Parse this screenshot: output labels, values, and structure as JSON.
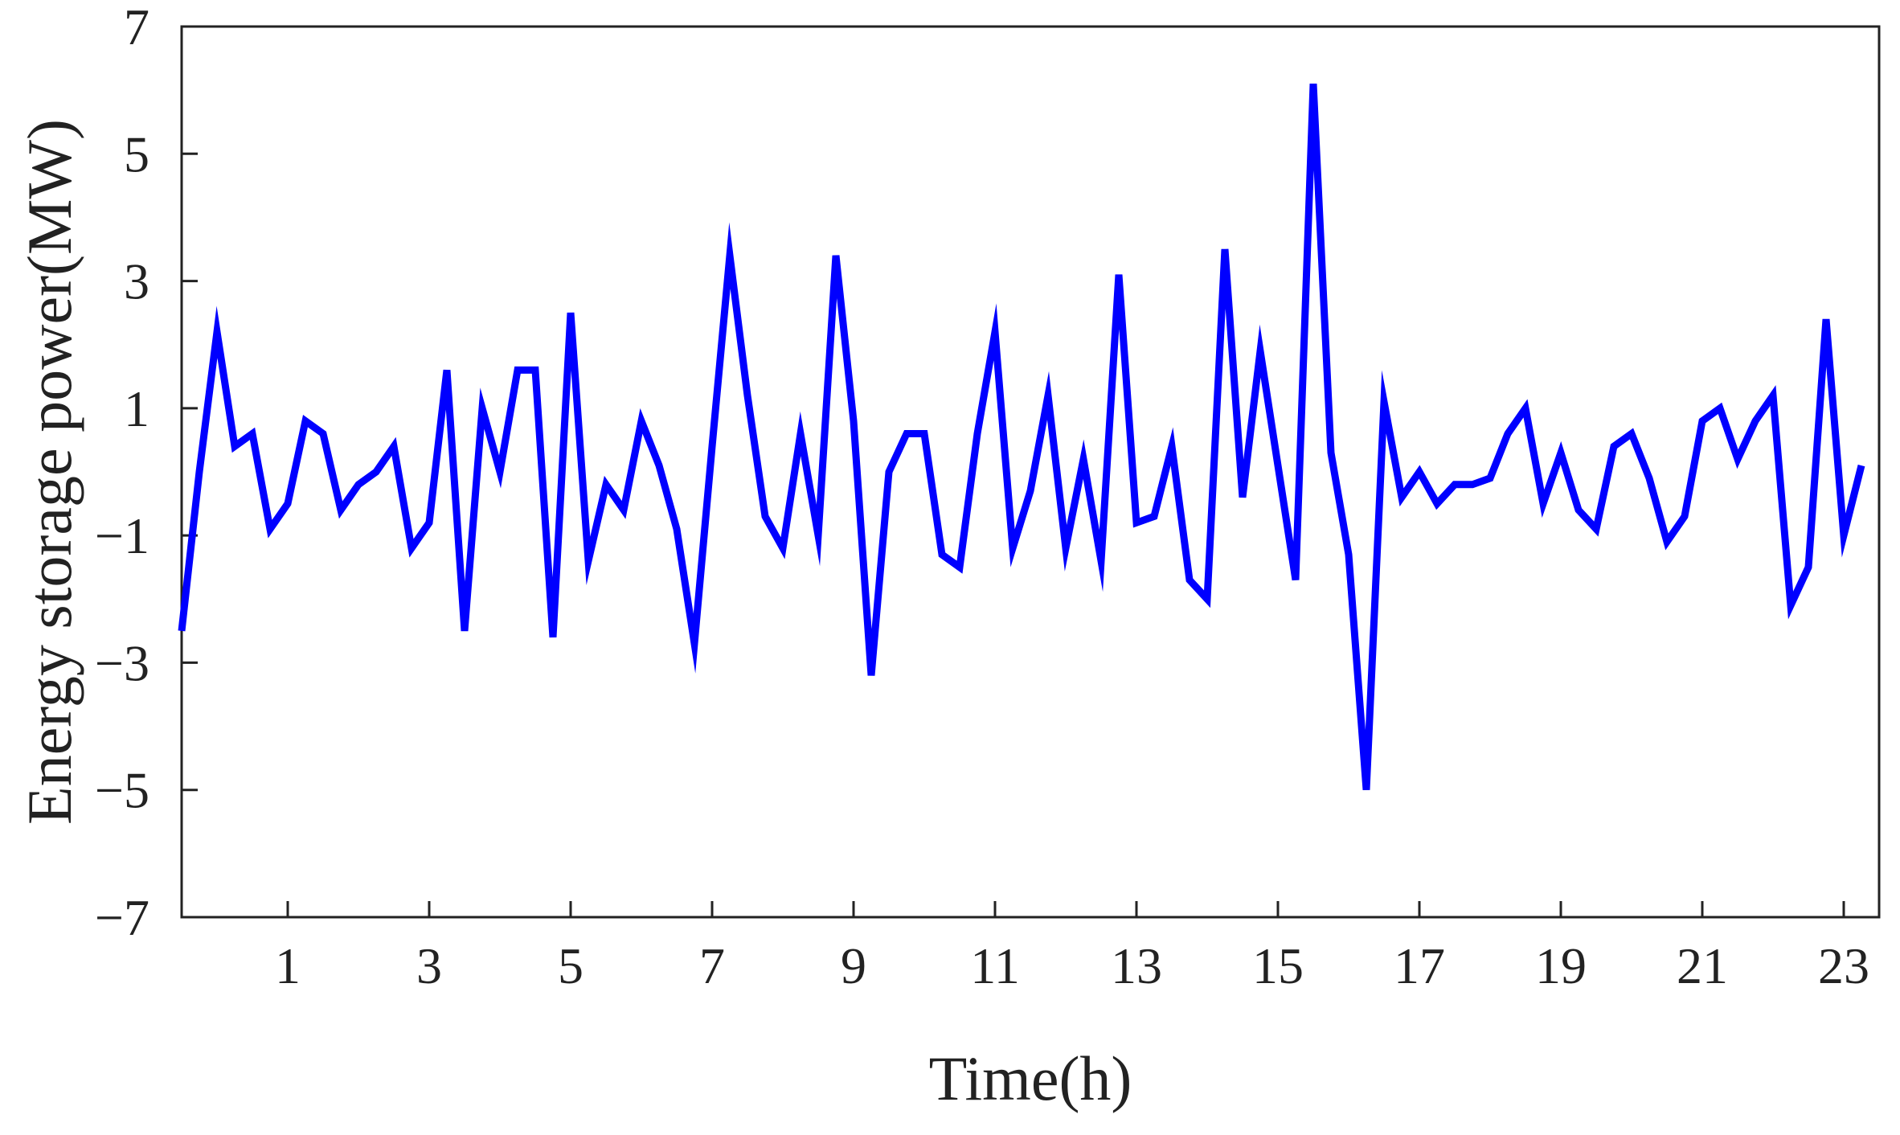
{
  "chart_data": {
    "type": "line",
    "title": "",
    "xlabel": "Time(h)",
    "ylabel": "Energy storage power(MW)",
    "xlim": [
      -0.5,
      23.5
    ],
    "ylim": [
      -7,
      7
    ],
    "xticks": [
      1,
      3,
      5,
      7,
      9,
      11,
      13,
      15,
      17,
      19,
      21,
      23
    ],
    "yticks": [
      -7,
      -5,
      -3,
      -1,
      1,
      3,
      5,
      7
    ],
    "xtick_labels": [
      "1",
      "3",
      "5",
      "7",
      "9",
      "11",
      "13",
      "15",
      "17",
      "19",
      "21",
      "23"
    ],
    "ytick_labels": [
      "−7",
      "−5",
      "−3",
      "−1",
      "1",
      "3",
      "5",
      "7"
    ],
    "grid": false,
    "legend": "none",
    "series": [
      {
        "color": "#0000ff",
        "x": [
          -0.5,
          -0.25,
          0.0,
          0.25,
          0.5,
          0.75,
          1.0,
          1.25,
          1.5,
          1.75,
          2.0,
          2.25,
          2.5,
          2.75,
          3.0,
          3.25,
          3.5,
          3.75,
          4.0,
          4.25,
          4.5,
          4.75,
          5.0,
          5.25,
          5.5,
          5.75,
          6.0,
          6.25,
          6.5,
          6.75,
          7.0,
          7.25,
          7.5,
          7.75,
          8.0,
          8.25,
          8.5,
          8.75,
          9.0,
          9.25,
          9.5,
          9.75,
          10.0,
          10.25,
          10.5,
          10.75,
          11.0,
          11.25,
          11.5,
          11.75,
          12.0,
          12.25,
          12.5,
          12.75,
          13.0,
          13.25,
          13.5,
          13.75,
          14.0,
          14.25,
          14.5,
          14.75,
          15.0,
          15.25,
          15.5,
          15.75,
          16.0,
          16.25,
          16.5,
          16.75,
          17.0,
          17.25,
          17.5,
          17.75,
          18.0,
          18.25,
          18.5,
          18.75,
          19.0,
          19.25,
          19.5,
          19.75,
          20.0,
          20.25,
          20.5,
          20.75,
          21.0,
          21.25,
          21.5,
          21.75,
          22.0,
          22.25,
          22.5,
          22.75,
          23.0,
          23.25
        ],
        "values": [
          -2.5,
          0.0,
          2.2,
          0.4,
          0.6,
          -0.9,
          -0.5,
          0.8,
          0.6,
          -0.6,
          -0.2,
          0.0,
          0.4,
          -1.2,
          -0.8,
          1.6,
          -2.5,
          1.0,
          0.0,
          1.6,
          1.6,
          -2.6,
          2.5,
          -1.4,
          -0.2,
          -0.6,
          0.8,
          0.1,
          -0.9,
          -2.7,
          0.4,
          3.4,
          1.2,
          -0.7,
          -1.2,
          0.6,
          -1.0,
          3.4,
          0.8,
          -3.2,
          0.0,
          0.6,
          0.6,
          -1.3,
          -1.5,
          0.6,
          2.2,
          -1.2,
          -0.3,
          1.2,
          -1.2,
          0.2,
          -1.4,
          3.1,
          -0.8,
          -0.7,
          0.4,
          -1.7,
          -2.0,
          3.5,
          -0.4,
          1.9,
          0.1,
          -1.7,
          6.1,
          0.3,
          -1.3,
          -5.0,
          1.1,
          -0.4,
          0.0,
          -0.5,
          -0.2,
          -0.2,
          -0.1,
          0.6,
          1.0,
          -0.5,
          0.3,
          -0.6,
          -0.9,
          0.4,
          0.6,
          -0.1,
          -1.1,
          -0.7,
          0.8,
          1.0,
          0.2,
          0.8,
          1.2,
          -2.1,
          -1.5,
          2.4,
          -1.0,
          0.1
        ]
      }
    ]
  }
}
